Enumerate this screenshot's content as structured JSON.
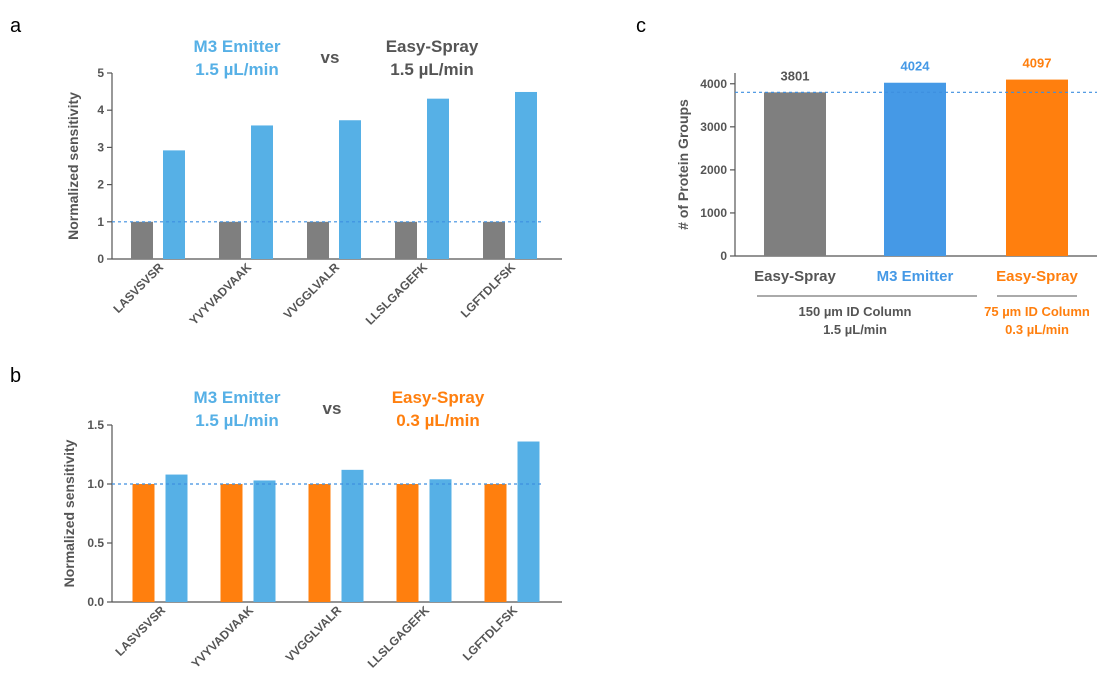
{
  "colors": {
    "gray": "#7f7f7f",
    "blue": "#56b0e6",
    "orange": "#ff7f0e",
    "blue_c": "#4599e6",
    "dark_text": "#555555",
    "ref_line": "#3d8fe0"
  },
  "panels": {
    "a": {
      "letter": "a",
      "title_left": [
        "M3 Emitter",
        "1.5 µL/min"
      ],
      "vs": "vs",
      "title_right": [
        "Easy-Spray",
        "1.5 µL/min"
      ]
    },
    "b": {
      "letter": "b",
      "title_left": [
        "M3 Emitter",
        "1.5 µL/min"
      ],
      "vs": "vs",
      "title_right": [
        "Easy-Spray",
        "0.3 µL/min"
      ]
    },
    "c": {
      "letter": "c",
      "groups": [
        "Easy-Spray",
        "M3 Emitter",
        "Easy-Spray"
      ],
      "sub_left": [
        "150 µm ID Column",
        "1.5 µL/min"
      ],
      "sub_right": [
        "75 µm ID Column",
        "0.3 µL/min"
      ]
    }
  },
  "chart_data": [
    {
      "id": "a",
      "type": "bar",
      "categories": [
        "LASVSVSR",
        "YVYVADVAAK",
        "VVGGLVALR",
        "LLSLGAGEFK",
        "LGFTDLFSK"
      ],
      "series": [
        {
          "name": "Easy-Spray 1.5 µL/min",
          "color": "#7f7f7f",
          "values": [
            1.0,
            1.0,
            1.0,
            1.0,
            1.0
          ]
        },
        {
          "name": "M3 Emitter 1.5 µL/min",
          "color": "#56b0e6",
          "values": [
            2.92,
            3.59,
            3.73,
            4.31,
            4.49
          ]
        }
      ],
      "ylabel": "Normalized sensitivity",
      "ylim": [
        0,
        5
      ],
      "yticks": [
        0,
        1,
        2,
        3,
        4,
        5
      ],
      "yticklabels": [
        "0",
        "1",
        "2",
        "3",
        "4",
        "5"
      ],
      "reference_line": 1.0,
      "grid": false
    },
    {
      "id": "b",
      "type": "bar",
      "categories": [
        "LASVSVSR",
        "YVYVADVAAK",
        "VVGGLVALR",
        "LLSLGAGEFK",
        "LGFTDLFSK"
      ],
      "series": [
        {
          "name": "Easy-Spray 0.3 µL/min",
          "color": "#ff7f0e",
          "values": [
            1.0,
            1.0,
            1.0,
            1.0,
            1.0
          ]
        },
        {
          "name": "M3 Emitter 1.5 µL/min",
          "color": "#56b0e6",
          "values": [
            1.08,
            1.03,
            1.12,
            1.04,
            1.36
          ]
        }
      ],
      "ylabel": "Normalized sensitivity",
      "ylim": [
        0,
        1.5
      ],
      "yticks": [
        0,
        0.5,
        1.0,
        1.5
      ],
      "yticklabels": [
        "0.0",
        "0.5",
        "1.0",
        "1.5"
      ],
      "reference_line": 1.0,
      "grid": false
    },
    {
      "id": "c",
      "type": "bar",
      "categories": [
        "Easy-Spray",
        "M3 Emitter",
        "Easy-Spray"
      ],
      "values": [
        3801,
        4024,
        4097
      ],
      "data_labels": [
        "3801",
        "4024",
        "4097"
      ],
      "colors": [
        "#7f7f7f",
        "#4599e6",
        "#ff7f0e"
      ],
      "ylabel": "# of Protein Groups",
      "ylim": [
        0,
        4250
      ],
      "yticks": [
        0,
        1000,
        2000,
        3000,
        4000
      ],
      "yticklabels": [
        "0",
        "1000",
        "2000",
        "3000",
        "4000"
      ],
      "reference_line": 3801,
      "grid": false
    }
  ]
}
